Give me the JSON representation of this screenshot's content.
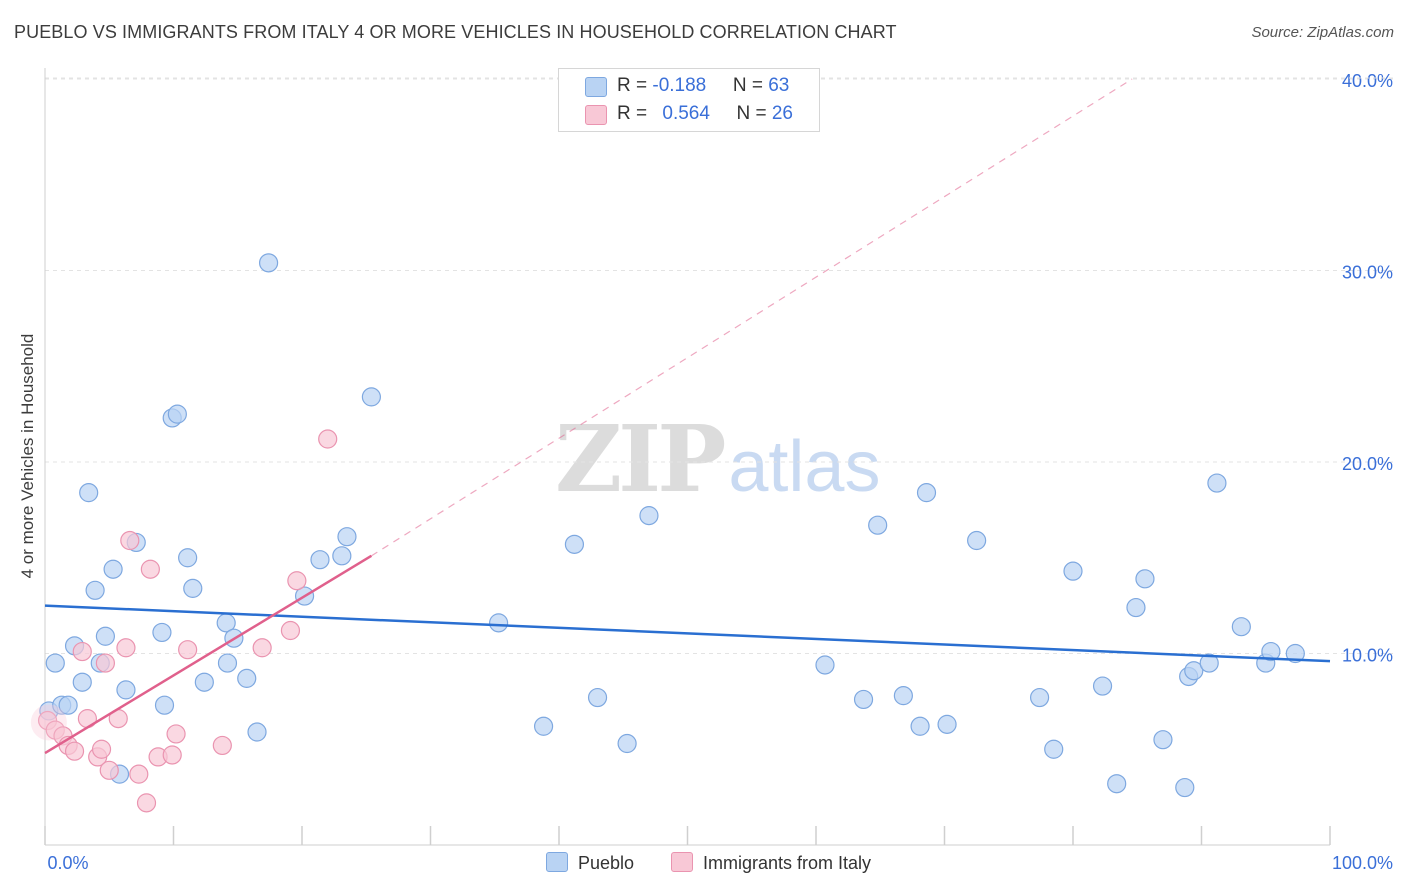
{
  "title": "PUEBLO VS IMMIGRANTS FROM ITALY 4 OR MORE VEHICLES IN HOUSEHOLD CORRELATION CHART",
  "source": "Source: ZipAtlas.com",
  "watermark": {
    "zip": "ZIP",
    "atlas": "atlas"
  },
  "legend": {
    "row1": {
      "r_label": "R = ",
      "r_value": "-0.188",
      "n_label": "N = ",
      "n_value": "63"
    },
    "row2": {
      "r_label": "R = ",
      "r_value": "0.564",
      "n_label": "N = ",
      "n_value": "26"
    }
  },
  "colors": {
    "pueblo_fill": "#b9d3f3",
    "pueblo_stroke": "#7ea8e0",
    "pueblo_line": "#2a6fd1",
    "italy_fill": "#f8c8d6",
    "italy_stroke": "#ea94b0",
    "italy_line": "#e0608c",
    "grid": "#e3e3e3",
    "tick_label": "#3a6fd8"
  },
  "chart_data": {
    "type": "scatter",
    "title": "PUEBLO VS IMMIGRANTS FROM ITALY 4 OR MORE VEHICLES IN HOUSEHOLD CORRELATION CHART",
    "xlabel": "",
    "ylabel": "4 or more Vehicles in Household",
    "xlim": [
      0,
      100
    ],
    "ylim": [
      0,
      41
    ],
    "x_tick_labels": [
      "0.0%",
      "100.0%"
    ],
    "y_ticks": [
      10,
      20,
      30,
      40
    ],
    "y_tick_labels": [
      "10.0%",
      "20.0%",
      "30.0%",
      "40.0%"
    ],
    "grid": true,
    "legend_position": "top-center",
    "series": [
      {
        "name": "Pueblo",
        "r": -0.188,
        "n": 63,
        "trend": {
          "x": [
            0,
            100
          ],
          "y": [
            12.5,
            9.6
          ]
        },
        "points": [
          [
            0.3,
            7.0
          ],
          [
            0.8,
            9.5
          ],
          [
            1.3,
            7.3
          ],
          [
            1.8,
            7.3
          ],
          [
            2.3,
            10.4
          ],
          [
            2.9,
            8.5
          ],
          [
            3.4,
            18.4
          ],
          [
            3.9,
            13.3
          ],
          [
            4.3,
            9.5
          ],
          [
            4.7,
            10.9
          ],
          [
            5.3,
            14.4
          ],
          [
            5.8,
            3.7
          ],
          [
            6.3,
            8.1
          ],
          [
            7.1,
            15.8
          ],
          [
            9.1,
            11.1
          ],
          [
            9.3,
            7.3
          ],
          [
            9.9,
            22.3
          ],
          [
            10.3,
            22.5
          ],
          [
            11.1,
            15.0
          ],
          [
            11.5,
            13.4
          ],
          [
            12.4,
            8.5
          ],
          [
            14.1,
            11.6
          ],
          [
            14.2,
            9.5
          ],
          [
            14.7,
            10.8
          ],
          [
            15.7,
            8.7
          ],
          [
            16.5,
            5.9
          ],
          [
            17.4,
            30.4
          ],
          [
            20.2,
            13.0
          ],
          [
            21.4,
            14.9
          ],
          [
            23.1,
            15.1
          ],
          [
            23.5,
            16.1
          ],
          [
            25.4,
            23.4
          ],
          [
            35.3,
            11.6
          ],
          [
            38.8,
            6.2
          ],
          [
            41.2,
            15.7
          ],
          [
            43.0,
            7.7
          ],
          [
            45.3,
            5.3
          ],
          [
            47.0,
            17.2
          ],
          [
            60.7,
            9.4
          ],
          [
            63.7,
            7.6
          ],
          [
            64.8,
            16.7
          ],
          [
            66.8,
            7.8
          ],
          [
            68.1,
            6.2
          ],
          [
            68.6,
            18.4
          ],
          [
            70.2,
            6.3
          ],
          [
            72.5,
            15.9
          ],
          [
            77.4,
            7.7
          ],
          [
            78.5,
            5.0
          ],
          [
            80.0,
            14.3
          ],
          [
            82.3,
            8.3
          ],
          [
            83.4,
            3.2
          ],
          [
            84.9,
            12.4
          ],
          [
            85.6,
            13.9
          ],
          [
            87.0,
            5.5
          ],
          [
            88.7,
            3.0
          ],
          [
            89.0,
            8.8
          ],
          [
            89.4,
            9.1
          ],
          [
            90.6,
            9.5
          ],
          [
            91.2,
            18.9
          ],
          [
            93.1,
            11.4
          ],
          [
            95.0,
            9.5
          ],
          [
            95.4,
            10.1
          ],
          [
            97.3,
            10.0
          ]
        ]
      },
      {
        "name": "Immigrants from Italy",
        "r": 0.564,
        "n": 26,
        "trend": {
          "x": [
            0,
            25.4
          ],
          "y": [
            4.8,
            15.1
          ],
          "dashed_extension_to": [
            84.6,
            40.0
          ]
        },
        "points": [
          [
            0.2,
            6.5
          ],
          [
            0.8,
            6.0
          ],
          [
            1.4,
            5.7
          ],
          [
            1.8,
            5.2
          ],
          [
            2.3,
            4.9
          ],
          [
            2.9,
            10.1
          ],
          [
            3.3,
            6.6
          ],
          [
            4.1,
            4.6
          ],
          [
            4.4,
            5.0
          ],
          [
            4.7,
            9.5
          ],
          [
            5.0,
            3.9
          ],
          [
            5.7,
            6.6
          ],
          [
            6.3,
            10.3
          ],
          [
            6.6,
            15.9
          ],
          [
            7.3,
            3.7
          ],
          [
            7.9,
            2.2
          ],
          [
            8.2,
            14.4
          ],
          [
            8.8,
            4.6
          ],
          [
            9.9,
            4.7
          ],
          [
            10.2,
            5.8
          ],
          [
            11.1,
            10.2
          ],
          [
            13.8,
            5.2
          ],
          [
            16.9,
            10.3
          ],
          [
            19.1,
            11.2
          ],
          [
            19.6,
            13.8
          ],
          [
            22.0,
            21.2
          ]
        ]
      }
    ]
  },
  "bottom_legend": {
    "item1": "Pueblo",
    "item2": "Immigrants from Italy"
  }
}
